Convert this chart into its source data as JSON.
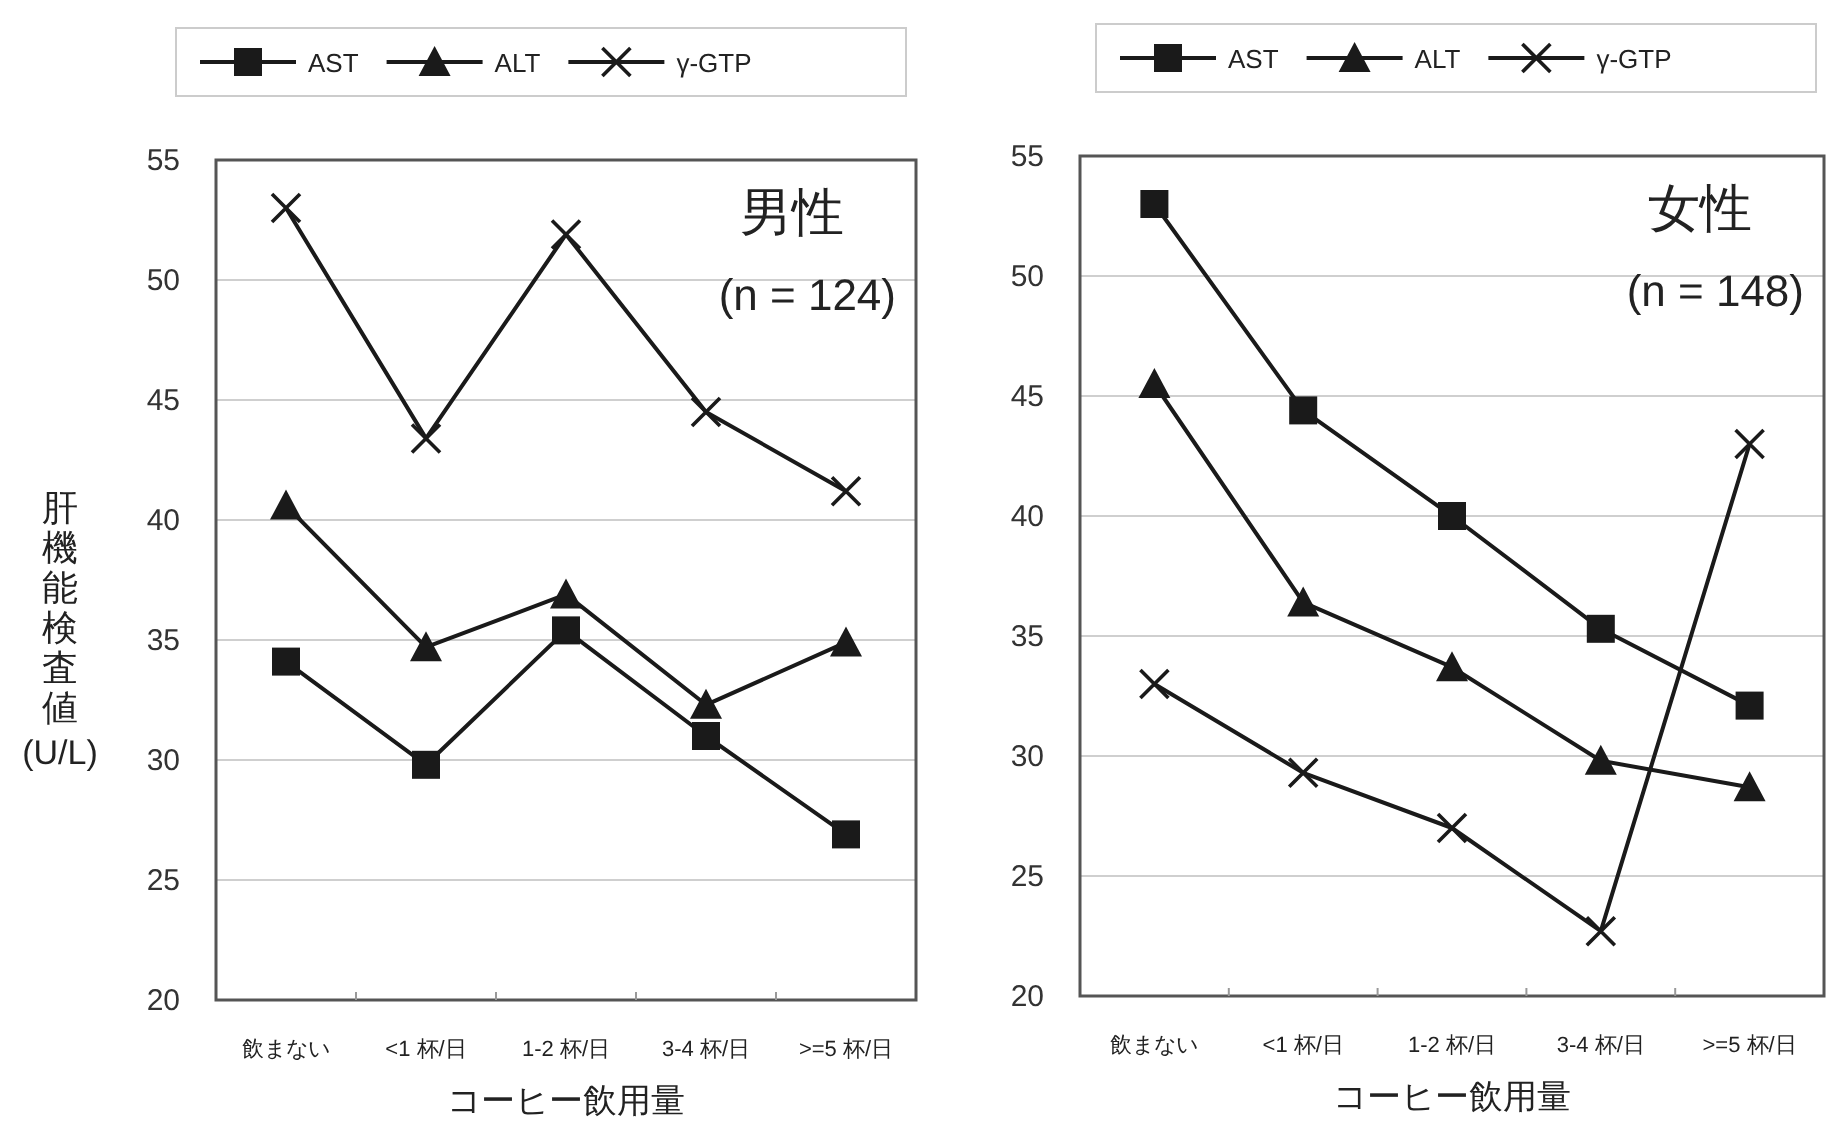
{
  "chart_data": [
    {
      "type": "line",
      "legend": "top",
      "grid": "y",
      "line_style": "solid",
      "ylabel": "肝機能検査値\n(U/L)",
      "xlabel": "コーヒー飲用量",
      "annotations": [
        "男性",
        "(n = 124)"
      ],
      "categories": [
        "飲まない",
        "<1 杯/日",
        "1-2 杯/日",
        "3-4 杯/日",
        ">=5 杯/日"
      ],
      "ylim": [
        20,
        55
      ],
      "yticks": [
        20,
        25,
        30,
        35,
        40,
        45,
        50,
        55
      ],
      "series": [
        {
          "name": "AST",
          "color": "#1a1a1a",
          "marker": "square",
          "values": [
            34.1,
            29.8,
            35.4,
            31.0,
            26.9
          ]
        },
        {
          "name": "ALT",
          "color": "#1a1a1a",
          "marker": "triangle",
          "values": [
            40.6,
            34.7,
            36.9,
            32.3,
            34.9
          ]
        },
        {
          "name": "γ-GTP",
          "color": "#1a1a1a",
          "marker": "cross",
          "values": [
            53.0,
            43.4,
            51.9,
            44.5,
            41.2
          ]
        }
      ]
    },
    {
      "type": "line",
      "legend": "top",
      "grid": "y",
      "line_style": "solid",
      "xlabel": "コーヒー飲用量",
      "annotations": [
        "女性",
        "(n = 148)"
      ],
      "categories": [
        "飲まない",
        "<1 杯/日",
        "1-2 杯/日",
        "3-4 杯/日",
        ">=5 杯/日"
      ],
      "ylim": [
        20,
        55
      ],
      "yticks": [
        20,
        25,
        30,
        35,
        40,
        45,
        50,
        55
      ],
      "series": [
        {
          "name": "AST",
          "color": "#1a1a1a",
          "marker": "square",
          "values": [
            53.0,
            44.4,
            40.0,
            35.3,
            32.1
          ]
        },
        {
          "name": "ALT",
          "color": "#1a1a1a",
          "marker": "triangle",
          "values": [
            45.5,
            36.4,
            33.7,
            29.8,
            28.7
          ]
        },
        {
          "name": "γ-GTP",
          "color": "#1a1a1a",
          "marker": "cross",
          "values": [
            33.0,
            29.3,
            27.0,
            22.7,
            43.0
          ]
        }
      ]
    }
  ]
}
